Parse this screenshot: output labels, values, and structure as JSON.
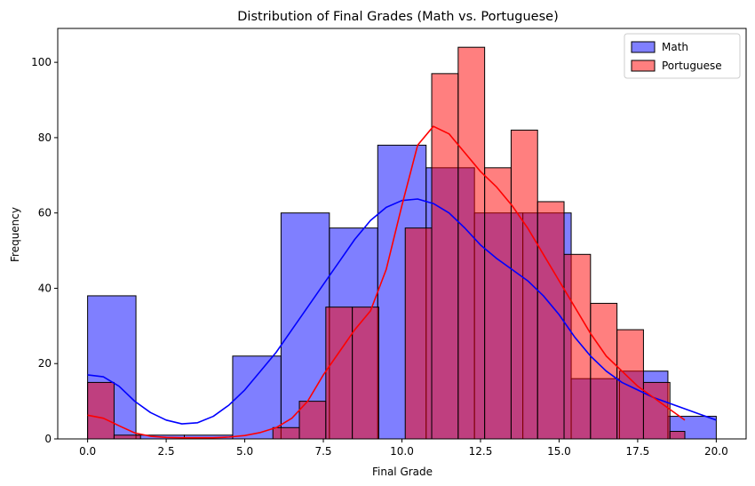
{
  "chart_data": {
    "type": "histogram",
    "title": "Distribution of Final Grades (Math vs. Portuguese)",
    "xlabel": "Final Grade",
    "ylabel": "Frequency",
    "xlim": [
      -0.95,
      20.95
    ],
    "ylim": [
      0,
      109
    ],
    "x_ticks": [
      "0.0",
      "2.5",
      "5.0",
      "7.5",
      "10.0",
      "12.5",
      "15.0",
      "17.5",
      "20.0"
    ],
    "y_ticks": [
      "0",
      "20",
      "40",
      "60",
      "80",
      "100"
    ],
    "legend": {
      "position": "top-right"
    },
    "series": [
      {
        "name": "Math",
        "color": "#0000ff",
        "alpha": 0.5,
        "bin_edges": [
          0,
          1.5385,
          3.0769,
          4.6154,
          6.1538,
          7.6923,
          9.2308,
          10.7692,
          12.3077,
          13.8462,
          15.3846,
          16.9231,
          18.4615,
          20
        ],
        "counts": [
          38,
          1,
          1,
          22,
          60,
          56,
          78,
          72,
          60,
          60,
          16,
          18,
          6
        ],
        "kde": [
          [
            0,
            17
          ],
          [
            0.5,
            16.5
          ],
          [
            1,
            14
          ],
          [
            1.5,
            10
          ],
          [
            2,
            7
          ],
          [
            2.5,
            5
          ],
          [
            3,
            4
          ],
          [
            3.5,
            4.3
          ],
          [
            4,
            6
          ],
          [
            4.5,
            9
          ],
          [
            5,
            13
          ],
          [
            5.5,
            18
          ],
          [
            6,
            23
          ],
          [
            6.5,
            29
          ],
          [
            7,
            35
          ],
          [
            7.5,
            41
          ],
          [
            8,
            47
          ],
          [
            8.5,
            53
          ],
          [
            9,
            58
          ],
          [
            9.5,
            61.5
          ],
          [
            10,
            63.3
          ],
          [
            10.5,
            63.7
          ],
          [
            11,
            62.5
          ],
          [
            11.5,
            60
          ],
          [
            12,
            56
          ],
          [
            12.5,
            51.5
          ],
          [
            13,
            48
          ],
          [
            13.5,
            45
          ],
          [
            14,
            42
          ],
          [
            14.5,
            38
          ],
          [
            15,
            33
          ],
          [
            15.5,
            27
          ],
          [
            16,
            22
          ],
          [
            16.5,
            18
          ],
          [
            17,
            15
          ],
          [
            17.5,
            13
          ],
          [
            18,
            11
          ],
          [
            18.5,
            9.5
          ],
          [
            19,
            8
          ],
          [
            19.5,
            6.5
          ],
          [
            20,
            5
          ]
        ]
      },
      {
        "name": "Portuguese",
        "color": "#ff0000",
        "alpha": 0.5,
        "bin_edges": [
          0,
          0.8421,
          1.6842,
          2.5263,
          3.3684,
          4.2105,
          5.0526,
          5.8947,
          6.7368,
          7.5789,
          8.4211,
          9.2632,
          10.1053,
          10.9474,
          11.7895,
          12.6316,
          13.4737,
          14.3158,
          15.1579,
          16,
          16.8421,
          17.6842,
          18.5263,
          19
        ],
        "counts": [
          15,
          1,
          0,
          0,
          0,
          0,
          0,
          3,
          10,
          35,
          35,
          0,
          56,
          97,
          104,
          72,
          82,
          63,
          49,
          36,
          29,
          15,
          2
        ],
        "kde": [
          [
            0,
            6.3
          ],
          [
            0.5,
            5.5
          ],
          [
            1,
            3.5
          ],
          [
            1.5,
            1.6
          ],
          [
            2,
            0.7
          ],
          [
            2.5,
            0.4
          ],
          [
            3,
            0.3
          ],
          [
            3.5,
            0.3
          ],
          [
            4,
            0.3
          ],
          [
            4.5,
            0.5
          ],
          [
            5,
            0.9
          ],
          [
            5.5,
            1.7
          ],
          [
            6,
            3
          ],
          [
            6.5,
            5.5
          ],
          [
            7,
            10
          ],
          [
            7.5,
            17
          ],
          [
            8,
            23
          ],
          [
            8.5,
            29
          ],
          [
            9,
            34
          ],
          [
            9.5,
            45
          ],
          [
            10,
            62
          ],
          [
            10.5,
            78
          ],
          [
            11,
            83
          ],
          [
            11.5,
            81
          ],
          [
            12,
            76
          ],
          [
            12.5,
            71
          ],
          [
            13,
            67
          ],
          [
            13.5,
            62
          ],
          [
            14,
            56
          ],
          [
            14.5,
            49
          ],
          [
            15,
            42
          ],
          [
            15.5,
            35
          ],
          [
            16,
            28
          ],
          [
            16.5,
            22
          ],
          [
            17,
            18
          ],
          [
            17.5,
            14
          ],
          [
            18,
            11
          ],
          [
            18.5,
            8
          ],
          [
            19,
            5
          ]
        ]
      }
    ]
  }
}
